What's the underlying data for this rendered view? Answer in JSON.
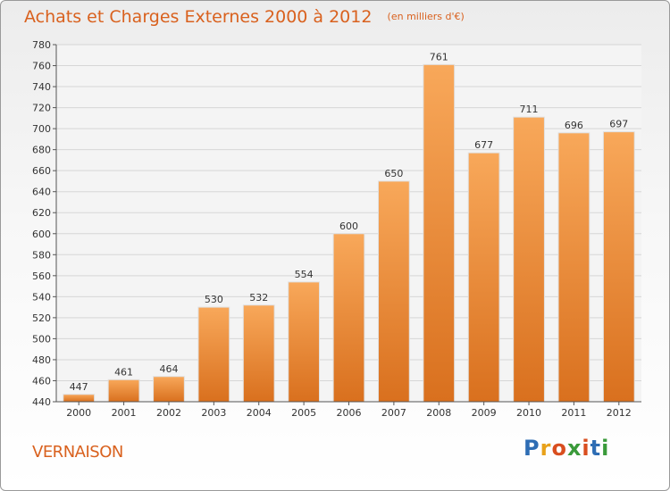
{
  "header": {
    "title": "Achats et Charges Externes 2000 à 2012",
    "unit": "(en milliers d'€)"
  },
  "footer": {
    "commune": "VERNAISON",
    "logo_letters": [
      "P",
      "r",
      "o",
      "x",
      "i",
      "t",
      "i"
    ],
    "logo_colors": [
      "#2e6db4",
      "#e8a21a",
      "#d94e1f",
      "#3a9a3a",
      "#d94e1f",
      "#2e6db4",
      "#3a9a3a"
    ]
  },
  "colors": {
    "bar_light": "#f8a85a",
    "bar_dark": "#d9701e",
    "grid": "#d6d6d6",
    "axis": "#555555",
    "text": "#333333",
    "title": "#d9611e"
  },
  "chart_data": {
    "type": "bar",
    "title": "Achats et Charges Externes 2000 à 2012",
    "subtitle": "(en milliers d'€)",
    "xlabel": "",
    "ylabel": "",
    "categories": [
      "2000",
      "2001",
      "2002",
      "2003",
      "2004",
      "2005",
      "2006",
      "2007",
      "2008",
      "2009",
      "2010",
      "2011",
      "2012"
    ],
    "values": [
      447,
      461,
      464,
      530,
      532,
      554,
      600,
      650,
      761,
      677,
      711,
      696,
      697
    ],
    "ylim": [
      440,
      780
    ],
    "yticks": [
      440,
      460,
      480,
      500,
      520,
      540,
      560,
      580,
      600,
      620,
      640,
      660,
      680,
      700,
      720,
      740,
      760,
      780
    ],
    "grid": true,
    "data_labels": true,
    "legend": "none"
  }
}
